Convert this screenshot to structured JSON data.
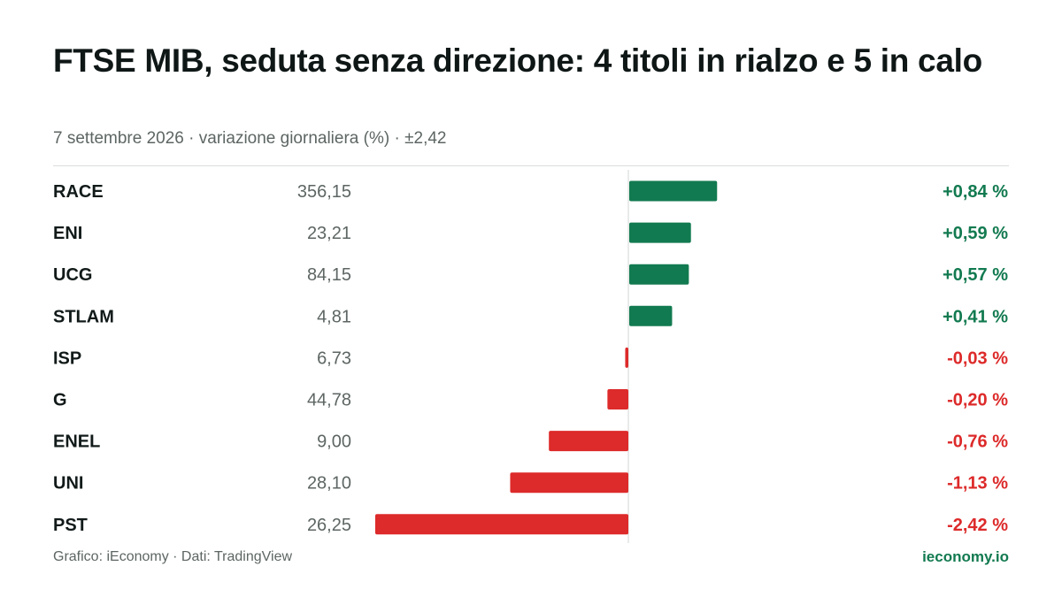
{
  "title": "FTSE MIB, seduta senza direzione: 4 titoli in rialzo e 5 in calo",
  "subtitle": "7 settembre 2026 · variazione giornaliera (%) · ±2,42",
  "footer": {
    "source": "Grafico: iEconomy · Dati: TradingView",
    "brand": "ieconomy.io"
  },
  "colors": {
    "positive": "#127a50",
    "negative": "#dd2a2a",
    "zero_line": "#d0d4d3"
  },
  "chart_data": {
    "type": "bar",
    "orientation": "horizontal",
    "scale_max": 2.42,
    "categories": [
      "RACE",
      "ENI",
      "UCG",
      "STLAM",
      "ISP",
      "G",
      "ENEL",
      "UNI",
      "PST"
    ],
    "prices": [
      "356,15",
      "23,21",
      "84,15",
      "4,81",
      "6,73",
      "44,78",
      "9,00",
      "28,10",
      "26,25"
    ],
    "values": [
      0.84,
      0.59,
      0.57,
      0.41,
      -0.03,
      -0.2,
      -0.76,
      -1.13,
      -2.42
    ],
    "labels": [
      "+0,84 %",
      "+0,59 %",
      "+0,57 %",
      "+0,41 %",
      "-0,03 %",
      "-0,20 %",
      "-0,76 %",
      "-1,13 %",
      "-2,42 %"
    ]
  }
}
